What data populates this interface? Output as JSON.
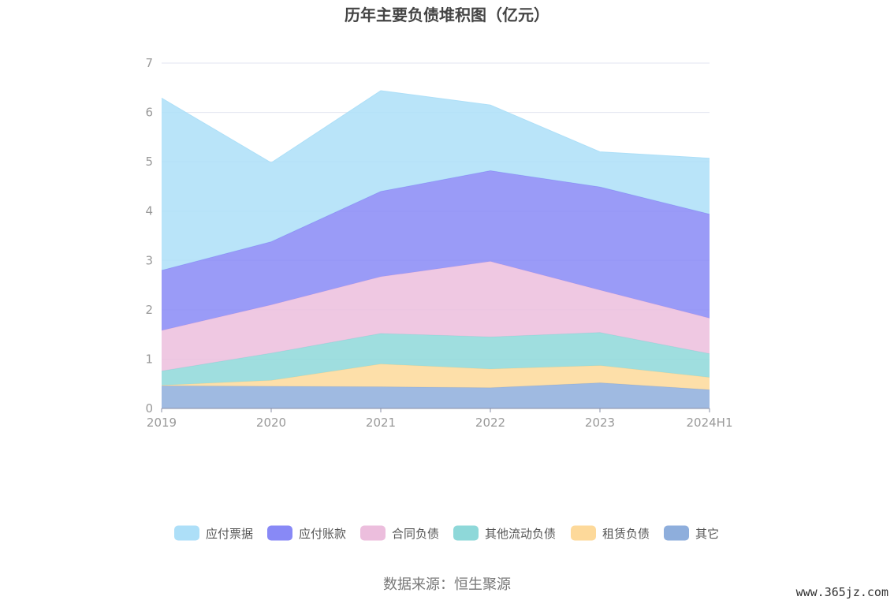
{
  "chart_data": {
    "type": "area",
    "title": "历年主要负债堆积图（亿元）",
    "categories": [
      "2019",
      "2020",
      "2021",
      "2022",
      "2023",
      "2024H1"
    ],
    "ylim": [
      0,
      7
    ],
    "yticks": [
      "0",
      "1",
      "2",
      "3",
      "4",
      "5",
      "6",
      "7"
    ],
    "stacked": true,
    "grid": true,
    "legend_position": "bottom",
    "series": [
      {
        "name": "其它",
        "color": "#8eaedc",
        "values": [
          0.46,
          0.45,
          0.44,
          0.42,
          0.52,
          0.38
        ]
      },
      {
        "name": "租赁负债",
        "color": "#fdd99a",
        "values": [
          0.01,
          0.12,
          0.46,
          0.38,
          0.35,
          0.25
        ]
      },
      {
        "name": "其他流动负债",
        "color": "#8ed8d9",
        "values": [
          0.29,
          0.55,
          0.62,
          0.65,
          0.67,
          0.48
        ]
      },
      {
        "name": "合同负债",
        "color": "#ecbedd",
        "values": [
          0.82,
          0.98,
          1.15,
          1.53,
          0.86,
          0.72
        ]
      },
      {
        "name": "应付账款",
        "color": "#8889f6",
        "values": [
          1.22,
          1.28,
          1.73,
          1.84,
          2.09,
          2.11
        ]
      },
      {
        "name": "应付票据",
        "color": "#addff8",
        "values": [
          3.49,
          1.6,
          2.04,
          1.33,
          0.71,
          1.13
        ]
      }
    ],
    "legend_order": [
      "应付票据",
      "应付账款",
      "合同负债",
      "其他流动负债",
      "租赁负债",
      "其它"
    ]
  },
  "source_text": "数据来源：恒生聚源",
  "watermark": "www.365jz.com"
}
